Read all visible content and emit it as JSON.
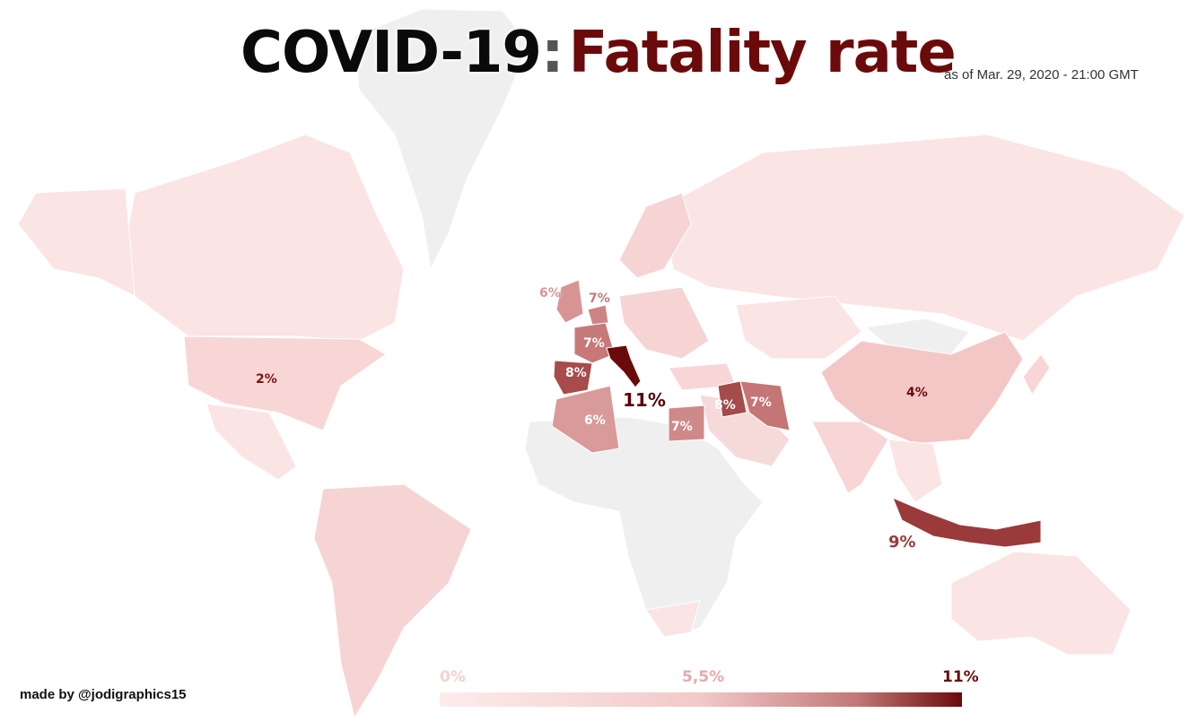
{
  "header": {
    "title_part1": "COVID-19",
    "title_colon": ":",
    "title_part2": "Fatality rate",
    "as_of": "as of Mar. 29, 2020 - 21:00 GMT"
  },
  "credit": "made by @jodigraphics15",
  "legend": {
    "min_label": "0%",
    "mid_label": "5,5%",
    "max_label": "11%",
    "colors": {
      "low": "#fdecec",
      "mid": "#f2c9c9",
      "high": "#6b0a0a",
      "no_data": "#efefef"
    }
  },
  "countries": [
    {
      "id": "usa",
      "label": "2%",
      "rate": 2
    },
    {
      "id": "china",
      "label": "4%",
      "rate": 4
    },
    {
      "id": "italy",
      "label": "11%",
      "rate": 11
    },
    {
      "id": "spain",
      "label": "8%",
      "rate": 8
    },
    {
      "id": "france",
      "label": "7%",
      "rate": 7
    },
    {
      "id": "uk",
      "label": "6%",
      "rate": 6
    },
    {
      "id": "netherlands",
      "label": "7%",
      "rate": 7
    },
    {
      "id": "algeria",
      "label": "6%",
      "rate": 6
    },
    {
      "id": "egypt",
      "label": "7%",
      "rate": 7
    },
    {
      "id": "iraq",
      "label": "8%",
      "rate": 8
    },
    {
      "id": "iran",
      "label": "7%",
      "rate": 7
    },
    {
      "id": "indonesia",
      "label": "9%",
      "rate": 9
    }
  ]
}
